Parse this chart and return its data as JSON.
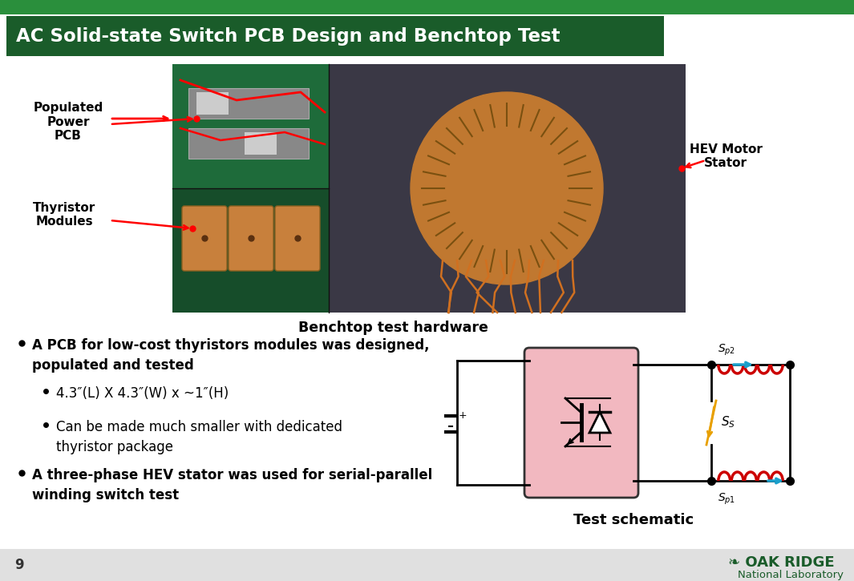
{
  "title": "AC Solid-state Switch PCB Design and Benchtop Test",
  "title_bg_color": "#1a5c2a",
  "title_text_color": "#ffffff",
  "bg_color": "#ffffff",
  "label_populated": "Populated\nPower\nPCB",
  "label_thyristor": "Thyristor\nModules",
  "label_hev": "HEV Motor\nStator",
  "caption_hardware": "Benchtop test hardware",
  "caption_schematic": "Test schematic",
  "bullet1_part1": "A PCB for low-cost thyristors modules was designed,",
  "bullet1_part2": "populated and tested",
  "sub_bullet1": "4.3″(L) X 4.3″(W) x ~1″(H)",
  "sub_bullet2_part1": "Can be made much smaller with dedicated",
  "sub_bullet2_part2": "thyristor package",
  "bullet2_part1": "A three-phase HEV stator was used for serial-parallel",
  "bullet2_part2": "winding switch test",
  "page_number": "9",
  "oak_ridge_green": "#1a5c2a",
  "schematic_box_color": "#f2b8c0",
  "coil_color": "#cc0000",
  "switch_color_blue": "#1aa0cc",
  "switch_color_orange": "#e8a000",
  "bottom_bar_color": "#e0e0e0",
  "photo_bg_dark": "#2d2d3a",
  "pcb_green_top": "#1e6b3a",
  "pcb_green_bot": "#164d2a",
  "copper_color": "#c8803c"
}
